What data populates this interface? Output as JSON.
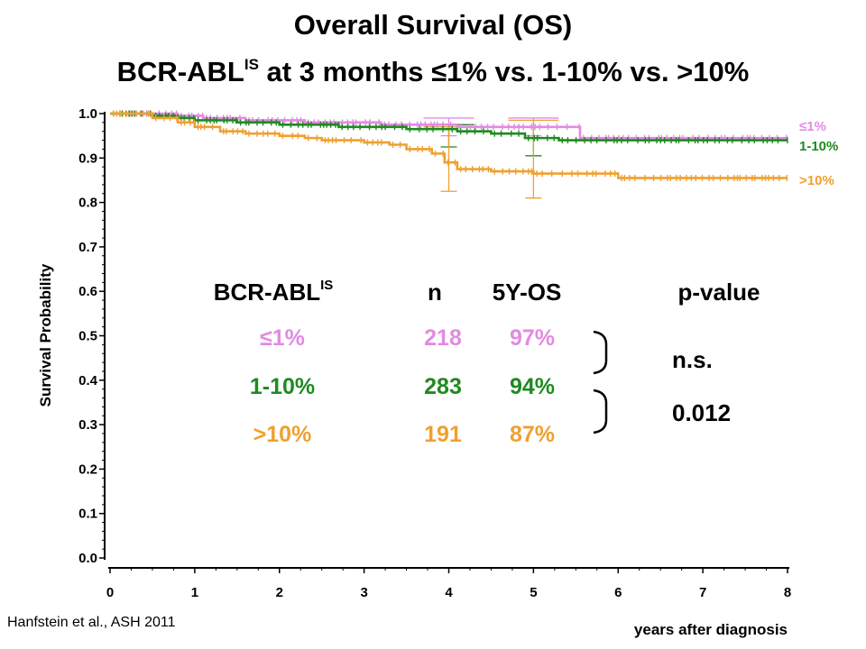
{
  "title": "Overall Survival (OS)",
  "subtitle": {
    "pre": "BCR-ABL",
    "sup": "IS",
    "post": " at 3 months ≤1% vs. 1-10% vs. >10%"
  },
  "citation": "Hanfstein et al., ASH 2011",
  "colors": {
    "le1": "#e38ae3",
    "r1to10": "#1f8a1f",
    "gt10": "#f0a030",
    "axis": "#000000"
  },
  "chart_data": {
    "type": "line",
    "step": true,
    "ylabel": "Survival Probability",
    "xlabel": "years after diagnosis",
    "xlim": [
      0,
      8
    ],
    "ylim": [
      0.0,
      1.0
    ],
    "xticks": [
      0,
      1,
      2,
      3,
      4,
      5,
      6,
      7,
      8
    ],
    "yticks": [
      0.0,
      0.1,
      0.2,
      0.3,
      0.4,
      0.5,
      0.6,
      0.7,
      0.8,
      0.9,
      1.0
    ],
    "yticklabels": [
      "0.0",
      "0.1",
      "0.2",
      "0.3",
      "0.4",
      "0.5",
      "0.6",
      "0.7",
      "0.8",
      "0.9",
      "1.0"
    ],
    "legend_position": "right",
    "series": [
      {
        "name": "≤1%",
        "color_key": "le1",
        "x": [
          0,
          0.8,
          1.1,
          1.6,
          2.3,
          3.2,
          4.1,
          5.5,
          5.55,
          8
        ],
        "y": [
          1.0,
          0.995,
          0.99,
          0.985,
          0.98,
          0.975,
          0.97,
          0.97,
          0.945,
          0.945
        ],
        "ci_at_years": [
          4.0,
          5.0
        ],
        "ci": [
          [
            0.95,
            0.99
          ],
          [
            0.95,
            0.99
          ]
        ]
      },
      {
        "name": "1-10%",
        "color_key": "r1to10",
        "x": [
          0,
          0.5,
          0.8,
          1.0,
          1.5,
          2.0,
          2.7,
          3.5,
          4.1,
          4.5,
          4.9,
          5.3,
          6.0,
          8
        ],
        "y": [
          1.0,
          0.995,
          0.99,
          0.985,
          0.98,
          0.975,
          0.97,
          0.965,
          0.96,
          0.955,
          0.945,
          0.94,
          0.94,
          0.94
        ],
        "ci_at_years": [
          4.0,
          5.0
        ],
        "ci": [
          [
            0.925,
            0.975
          ],
          [
            0.905,
            0.97
          ]
        ]
      },
      {
        "name": ">10%",
        "color_key": "gt10",
        "x": [
          0,
          0.5,
          0.8,
          1.0,
          1.3,
          1.6,
          2.0,
          2.3,
          2.5,
          3.0,
          3.3,
          3.5,
          3.8,
          3.95,
          4.1,
          4.5,
          5.0,
          5.3,
          6.0,
          8
        ],
        "y": [
          1.0,
          0.99,
          0.98,
          0.97,
          0.96,
          0.955,
          0.95,
          0.945,
          0.94,
          0.935,
          0.93,
          0.92,
          0.91,
          0.89,
          0.875,
          0.87,
          0.865,
          0.865,
          0.855,
          0.855
        ],
        "ci_at_years": [
          4.0,
          5.0
        ],
        "ci": [
          [
            0.825,
            0.97
          ],
          [
            0.81,
            0.985
          ]
        ]
      }
    ]
  },
  "table": {
    "headers": {
      "group_pre": "BCR-ABL",
      "group_sup": "IS",
      "n": "n",
      "os": "5Y-OS",
      "p": "p-value"
    },
    "rows": [
      {
        "group": "≤1%",
        "n": "218",
        "os": "97%",
        "color_key": "le1"
      },
      {
        "group": "1-10%",
        "n": "283",
        "os": "94%",
        "color_key": "r1to10"
      },
      {
        "group": ">10%",
        "n": "191",
        "os": "87%",
        "color_key": "gt10"
      }
    ],
    "pvalues": [
      "n.s.",
      "0.012"
    ]
  }
}
